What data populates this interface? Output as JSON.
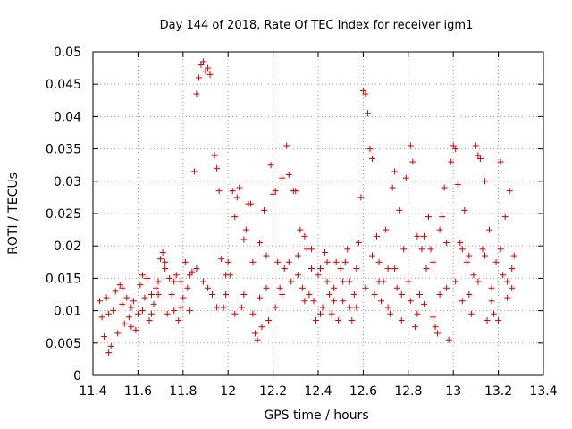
{
  "chart_data": {
    "type": "scatter",
    "title": "Day 144 of 2018, Rate Of TEC Index for receiver igm1",
    "xlabel": "GPS time / hours",
    "ylabel": "ROTI / TECUs",
    "xlim": [
      11.4,
      13.4
    ],
    "ylim": [
      0,
      0.05
    ],
    "xticks": [
      "11.4",
      "11.6",
      "11.8",
      "12",
      "12.2",
      "12.4",
      "12.6",
      "12.8",
      "13",
      "13.2",
      "13.4"
    ],
    "yticks": [
      "0",
      "0.005",
      "0.01",
      "0.015",
      "0.02",
      "0.025",
      "0.03",
      "0.035",
      "0.04",
      "0.045",
      "0.05"
    ],
    "grid": true,
    "marker": "+",
    "color": "#d40000",
    "series": [
      {
        "name": "ROTI",
        "points": [
          [
            11.44,
            0.009
          ],
          [
            11.45,
            0.006
          ],
          [
            11.46,
            0.012
          ],
          [
            11.47,
            0.0035
          ],
          [
            11.48,
            0.0045
          ],
          [
            11.49,
            0.01
          ],
          [
            11.5,
            0.013
          ],
          [
            11.51,
            0.0065
          ],
          [
            11.52,
            0.014
          ],
          [
            11.53,
            0.011
          ],
          [
            11.54,
            0.008
          ],
          [
            11.55,
            0.012
          ],
          [
            11.56,
            0.009
          ],
          [
            11.57,
            0.0075
          ],
          [
            11.58,
            0.0115
          ],
          [
            11.59,
            0.007
          ],
          [
            11.6,
            0.0095
          ],
          [
            11.61,
            0.014
          ],
          [
            11.62,
            0.01
          ],
          [
            11.63,
            0.012
          ],
          [
            11.64,
            0.015
          ],
          [
            11.65,
            0.0085
          ],
          [
            11.66,
            0.0125
          ],
          [
            11.67,
            0.011
          ],
          [
            11.68,
            0.0135
          ],
          [
            11.69,
            0.0145
          ],
          [
            11.7,
            0.018
          ],
          [
            11.71,
            0.019
          ],
          [
            11.72,
            0.0165
          ],
          [
            11.73,
            0.0095
          ],
          [
            11.74,
            0.015
          ],
          [
            11.75,
            0.0125
          ],
          [
            11.76,
            0.01
          ],
          [
            11.77,
            0.0155
          ],
          [
            11.78,
            0.0085
          ],
          [
            11.79,
            0.0145
          ],
          [
            11.8,
            0.012
          ],
          [
            11.81,
            0.0175
          ],
          [
            11.82,
            0.0135
          ],
          [
            11.83,
            0.01
          ],
          [
            11.84,
            0.016
          ],
          [
            11.85,
            0.0315
          ],
          [
            11.86,
            0.0435
          ],
          [
            11.87,
            0.046
          ],
          [
            11.88,
            0.048
          ],
          [
            11.89,
            0.0485
          ],
          [
            11.9,
            0.047
          ],
          [
            11.91,
            0.0475
          ],
          [
            11.92,
            0.0465
          ],
          [
            11.93,
            0.0125
          ],
          [
            11.94,
            0.034
          ],
          [
            11.95,
            0.032
          ],
          [
            11.96,
            0.0285
          ],
          [
            11.97,
            0.018
          ],
          [
            11.98,
            0.0105
          ],
          [
            11.99,
            0.0125
          ],
          [
            12.0,
            0.0175
          ],
          [
            12.01,
            0.0155
          ],
          [
            12.02,
            0.0285
          ],
          [
            12.03,
            0.0245
          ],
          [
            12.04,
            0.0275
          ],
          [
            12.05,
            0.029
          ],
          [
            12.06,
            0.0105
          ],
          [
            12.07,
            0.021
          ],
          [
            12.08,
            0.0225
          ],
          [
            12.09,
            0.0265
          ],
          [
            12.1,
            0.0265
          ],
          [
            12.11,
            0.0175
          ],
          [
            12.12,
            0.0065
          ],
          [
            12.13,
            0.0055
          ],
          [
            12.14,
            0.012
          ],
          [
            12.15,
            0.0075
          ],
          [
            12.16,
            0.0255
          ],
          [
            12.17,
            0.0185
          ],
          [
            12.18,
            0.0085
          ],
          [
            12.19,
            0.0325
          ],
          [
            12.2,
            0.028
          ],
          [
            12.21,
            0.0105
          ],
          [
            12.22,
            0.0175
          ],
          [
            12.23,
            0.0135
          ],
          [
            12.24,
            0.0305
          ],
          [
            12.25,
            0.0165
          ],
          [
            12.26,
            0.0355
          ],
          [
            12.27,
            0.031
          ],
          [
            12.28,
            0.0145
          ],
          [
            12.29,
            0.0285
          ],
          [
            12.3,
            0.0285
          ],
          [
            12.31,
            0.0155
          ],
          [
            12.32,
            0.0225
          ],
          [
            12.33,
            0.0135
          ],
          [
            12.34,
            0.0215
          ],
          [
            12.35,
            0.0195
          ],
          [
            12.36,
            0.0125
          ],
          [
            12.37,
            0.0165
          ],
          [
            12.38,
            0.0115
          ],
          [
            12.39,
            0.0085
          ],
          [
            12.4,
            0.0155
          ],
          [
            12.41,
            0.0165
          ],
          [
            12.42,
            0.0105
          ],
          [
            12.43,
            0.019
          ],
          [
            12.44,
            0.0145
          ],
          [
            12.45,
            0.0125
          ],
          [
            12.46,
            0.0095
          ],
          [
            12.47,
            0.0135
          ],
          [
            12.48,
            0.0175
          ],
          [
            12.49,
            0.0085
          ],
          [
            12.5,
            0.0165
          ],
          [
            12.51,
            0.0115
          ],
          [
            12.52,
            0.0175
          ],
          [
            12.53,
            0.0195
          ],
          [
            12.54,
            0.0145
          ],
          [
            12.55,
            0.0085
          ],
          [
            12.56,
            0.0125
          ],
          [
            12.57,
            0.0105
          ],
          [
            12.58,
            0.0205
          ],
          [
            12.59,
            0.0275
          ],
          [
            12.6,
            0.044
          ],
          [
            12.61,
            0.0435
          ],
          [
            12.62,
            0.0405
          ],
          [
            12.63,
            0.035
          ],
          [
            12.64,
            0.0335
          ],
          [
            12.65,
            0.0125
          ],
          [
            12.66,
            0.0215
          ],
          [
            12.67,
            0.0175
          ],
          [
            12.68,
            0.0115
          ],
          [
            12.69,
            0.0145
          ],
          [
            12.7,
            0.0225
          ],
          [
            12.71,
            0.0165
          ],
          [
            12.72,
            0.0095
          ],
          [
            12.73,
            0.029
          ],
          [
            12.74,
            0.0315
          ],
          [
            12.75,
            0.0135
          ],
          [
            12.76,
            0.0255
          ],
          [
            12.77,
            0.0085
          ],
          [
            12.78,
            0.0195
          ],
          [
            12.79,
            0.0305
          ],
          [
            12.8,
            0.0145
          ],
          [
            12.81,
            0.0355
          ],
          [
            12.82,
            0.033
          ],
          [
            12.83,
            0.0075
          ],
          [
            12.84,
            0.0215
          ],
          [
            12.85,
            0.0125
          ],
          [
            12.86,
            0.0195
          ],
          [
            12.87,
            0.011
          ],
          [
            12.88,
            0.0165
          ],
          [
            12.89,
            0.0245
          ],
          [
            12.9,
            0.0195
          ],
          [
            12.91,
            0.009
          ],
          [
            12.92,
            0.0075
          ],
          [
            12.93,
            0.0065
          ],
          [
            12.94,
            0.0225
          ],
          [
            12.95,
            0.0245
          ],
          [
            12.96,
            0.029
          ],
          [
            12.97,
            0.0135
          ],
          [
            12.98,
            0.0055
          ],
          [
            12.99,
            0.033
          ],
          [
            13.0,
            0.0355
          ],
          [
            13.01,
            0.035
          ],
          [
            13.02,
            0.0295
          ],
          [
            13.03,
            0.0205
          ],
          [
            13.04,
            0.0115
          ],
          [
            13.05,
            0.0255
          ],
          [
            13.06,
            0.0175
          ],
          [
            13.07,
            0.0185
          ],
          [
            13.08,
            0.0095
          ],
          [
            13.09,
            0.0155
          ],
          [
            13.1,
            0.0355
          ],
          [
            13.11,
            0.034
          ],
          [
            13.12,
            0.0335
          ],
          [
            13.13,
            0.0195
          ],
          [
            13.14,
            0.03
          ],
          [
            13.15,
            0.0085
          ],
          [
            13.16,
            0.0225
          ],
          [
            13.17,
            0.0135
          ],
          [
            13.18,
            0.0095
          ],
          [
            13.19,
            0.0175
          ],
          [
            13.2,
            0.0085
          ],
          [
            13.21,
            0.033
          ],
          [
            13.22,
            0.0155
          ],
          [
            13.23,
            0.0245
          ],
          [
            13.24,
            0.012
          ],
          [
            13.25,
            0.0285
          ],
          [
            13.26,
            0.0165
          ],
          [
            13.27,
            0.0185
          ],
          [
            11.43,
            0.0115
          ],
          [
            11.47,
            0.0095
          ],
          [
            11.53,
            0.0135
          ],
          [
            11.57,
            0.0105
          ],
          [
            11.62,
            0.0155
          ],
          [
            11.66,
            0.0095
          ],
          [
            11.69,
            0.0125
          ],
          [
            11.72,
            0.0175
          ],
          [
            11.76,
            0.0145
          ],
          [
            11.79,
            0.0105
          ],
          [
            11.83,
            0.0155
          ],
          [
            11.86,
            0.0165
          ],
          [
            11.89,
            0.0145
          ],
          [
            11.91,
            0.0135
          ],
          [
            11.95,
            0.0105
          ],
          [
            11.99,
            0.0155
          ],
          [
            12.03,
            0.0095
          ],
          [
            12.07,
            0.0125
          ],
          [
            12.11,
            0.0095
          ],
          [
            12.14,
            0.0205
          ],
          [
            12.17,
            0.0135
          ],
          [
            12.21,
            0.0285
          ],
          [
            12.24,
            0.0125
          ],
          [
            12.27,
            0.0175
          ],
          [
            12.31,
            0.0185
          ],
          [
            12.34,
            0.0115
          ],
          [
            12.37,
            0.0195
          ],
          [
            12.41,
            0.0095
          ],
          [
            12.44,
            0.0175
          ],
          [
            12.47,
            0.0115
          ],
          [
            12.51,
            0.0145
          ],
          [
            12.54,
            0.0105
          ],
          [
            12.57,
            0.0165
          ],
          [
            12.61,
            0.0135
          ],
          [
            12.64,
            0.0185
          ],
          [
            12.67,
            0.0145
          ],
          [
            12.71,
            0.0105
          ],
          [
            12.74,
            0.0165
          ],
          [
            12.77,
            0.0125
          ],
          [
            12.81,
            0.0115
          ],
          [
            12.84,
            0.0095
          ],
          [
            12.87,
            0.0215
          ],
          [
            12.91,
            0.0175
          ],
          [
            12.94,
            0.0125
          ],
          [
            12.97,
            0.0205
          ],
          [
            13.01,
            0.0145
          ],
          [
            13.04,
            0.0195
          ],
          [
            13.07,
            0.0125
          ],
          [
            13.11,
            0.0145
          ],
          [
            13.14,
            0.0185
          ],
          [
            13.17,
            0.0115
          ],
          [
            13.21,
            0.0195
          ],
          [
            13.24,
            0.0145
          ],
          [
            13.26,
            0.0135
          ]
        ]
      }
    ]
  }
}
